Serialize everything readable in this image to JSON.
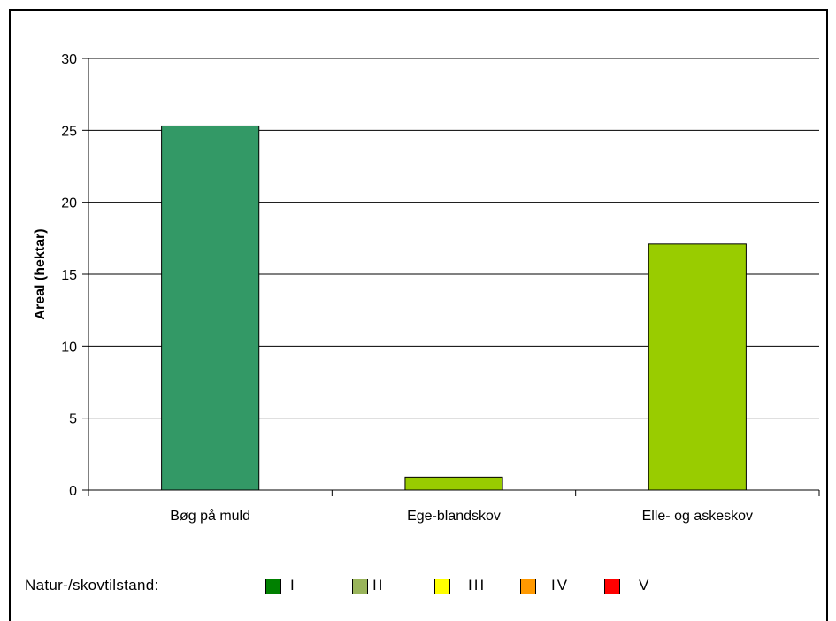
{
  "chart_data": {
    "type": "bar",
    "categories": [
      "Bøg på muld",
      "Ege-blandskov",
      "Elle- og askeskov"
    ],
    "values": [
      25.3,
      0.9,
      17.1
    ],
    "bar_colors": [
      "#339966",
      "#99cc00",
      "#99cc00"
    ],
    "title": "",
    "xlabel": "",
    "ylabel": "Areal (hektar)",
    "ylim": [
      0,
      30
    ],
    "yticks": [
      0,
      5,
      10,
      15,
      20,
      25,
      30
    ],
    "grid": true
  },
  "legend": {
    "title": "Natur-/skovtilstand:",
    "items": [
      {
        "label": "I",
        "color": "#008000"
      },
      {
        "label": "II",
        "color": "#99b45b"
      },
      {
        "label": "III",
        "color": "#ffff00"
      },
      {
        "label": "IV",
        "color": "#ff9900"
      },
      {
        "label": "V",
        "color": "#ff0000"
      }
    ]
  }
}
